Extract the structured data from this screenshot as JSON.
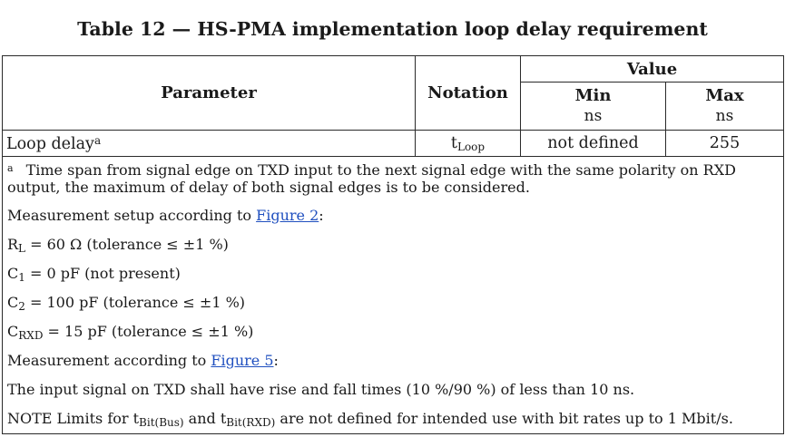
{
  "title": "Table 12 — HS-PMA implementation loop delay requirement",
  "table": {
    "header": {
      "parameter": "Parameter",
      "notation": "Notation",
      "value": "Value",
      "min": "Min",
      "max": "Max",
      "min_unit": "ns",
      "max_unit": "ns"
    },
    "row": {
      "parameter": "Loop delay",
      "footnote_mark": "a",
      "notation_main": "t",
      "notation_sub": "Loop",
      "min": "not defined",
      "max": "255"
    }
  },
  "notes": {
    "footnote_mark": "a",
    "footnote_text": "Time span from signal edge on TXD input to the next signal edge with the same polarity on RXD output, the maximum of delay of both signal edges is to be considered.",
    "setup_prefix": "Measurement setup according to ",
    "setup_link": "Figure 2",
    "setup_suffix": ":",
    "rl_main": "R",
    "rl_sub": "L",
    "rl_rest": " = 60 Ω (tolerance ≤ ±1 %)",
    "c1_main": "C",
    "c1_sub": "1",
    "c1_rest": " = 0 pF (not present)",
    "c2_main": "C",
    "c2_sub": "2",
    "c2_rest": " = 100 pF (tolerance ≤ ±1 %)",
    "crxd_main": "C",
    "crxd_sub": "RXD",
    "crxd_rest": " = 15 pF (tolerance ≤ ±1 %)",
    "meas_prefix": "Measurement according to ",
    "meas_link": "Figure 5",
    "meas_suffix": ":",
    "input_signal": "The input signal on TXD shall have rise and fall times (10 %/90 %) of less than 10 ns.",
    "note_prefix": "NOTE   Limits for t",
    "note_sub1": "Bit(Bus)",
    "note_mid": " and t",
    "note_sub2": "Bit(RXD)",
    "note_suffix": " are not defined for intended use with bit rates up to 1 Mbit/s."
  }
}
